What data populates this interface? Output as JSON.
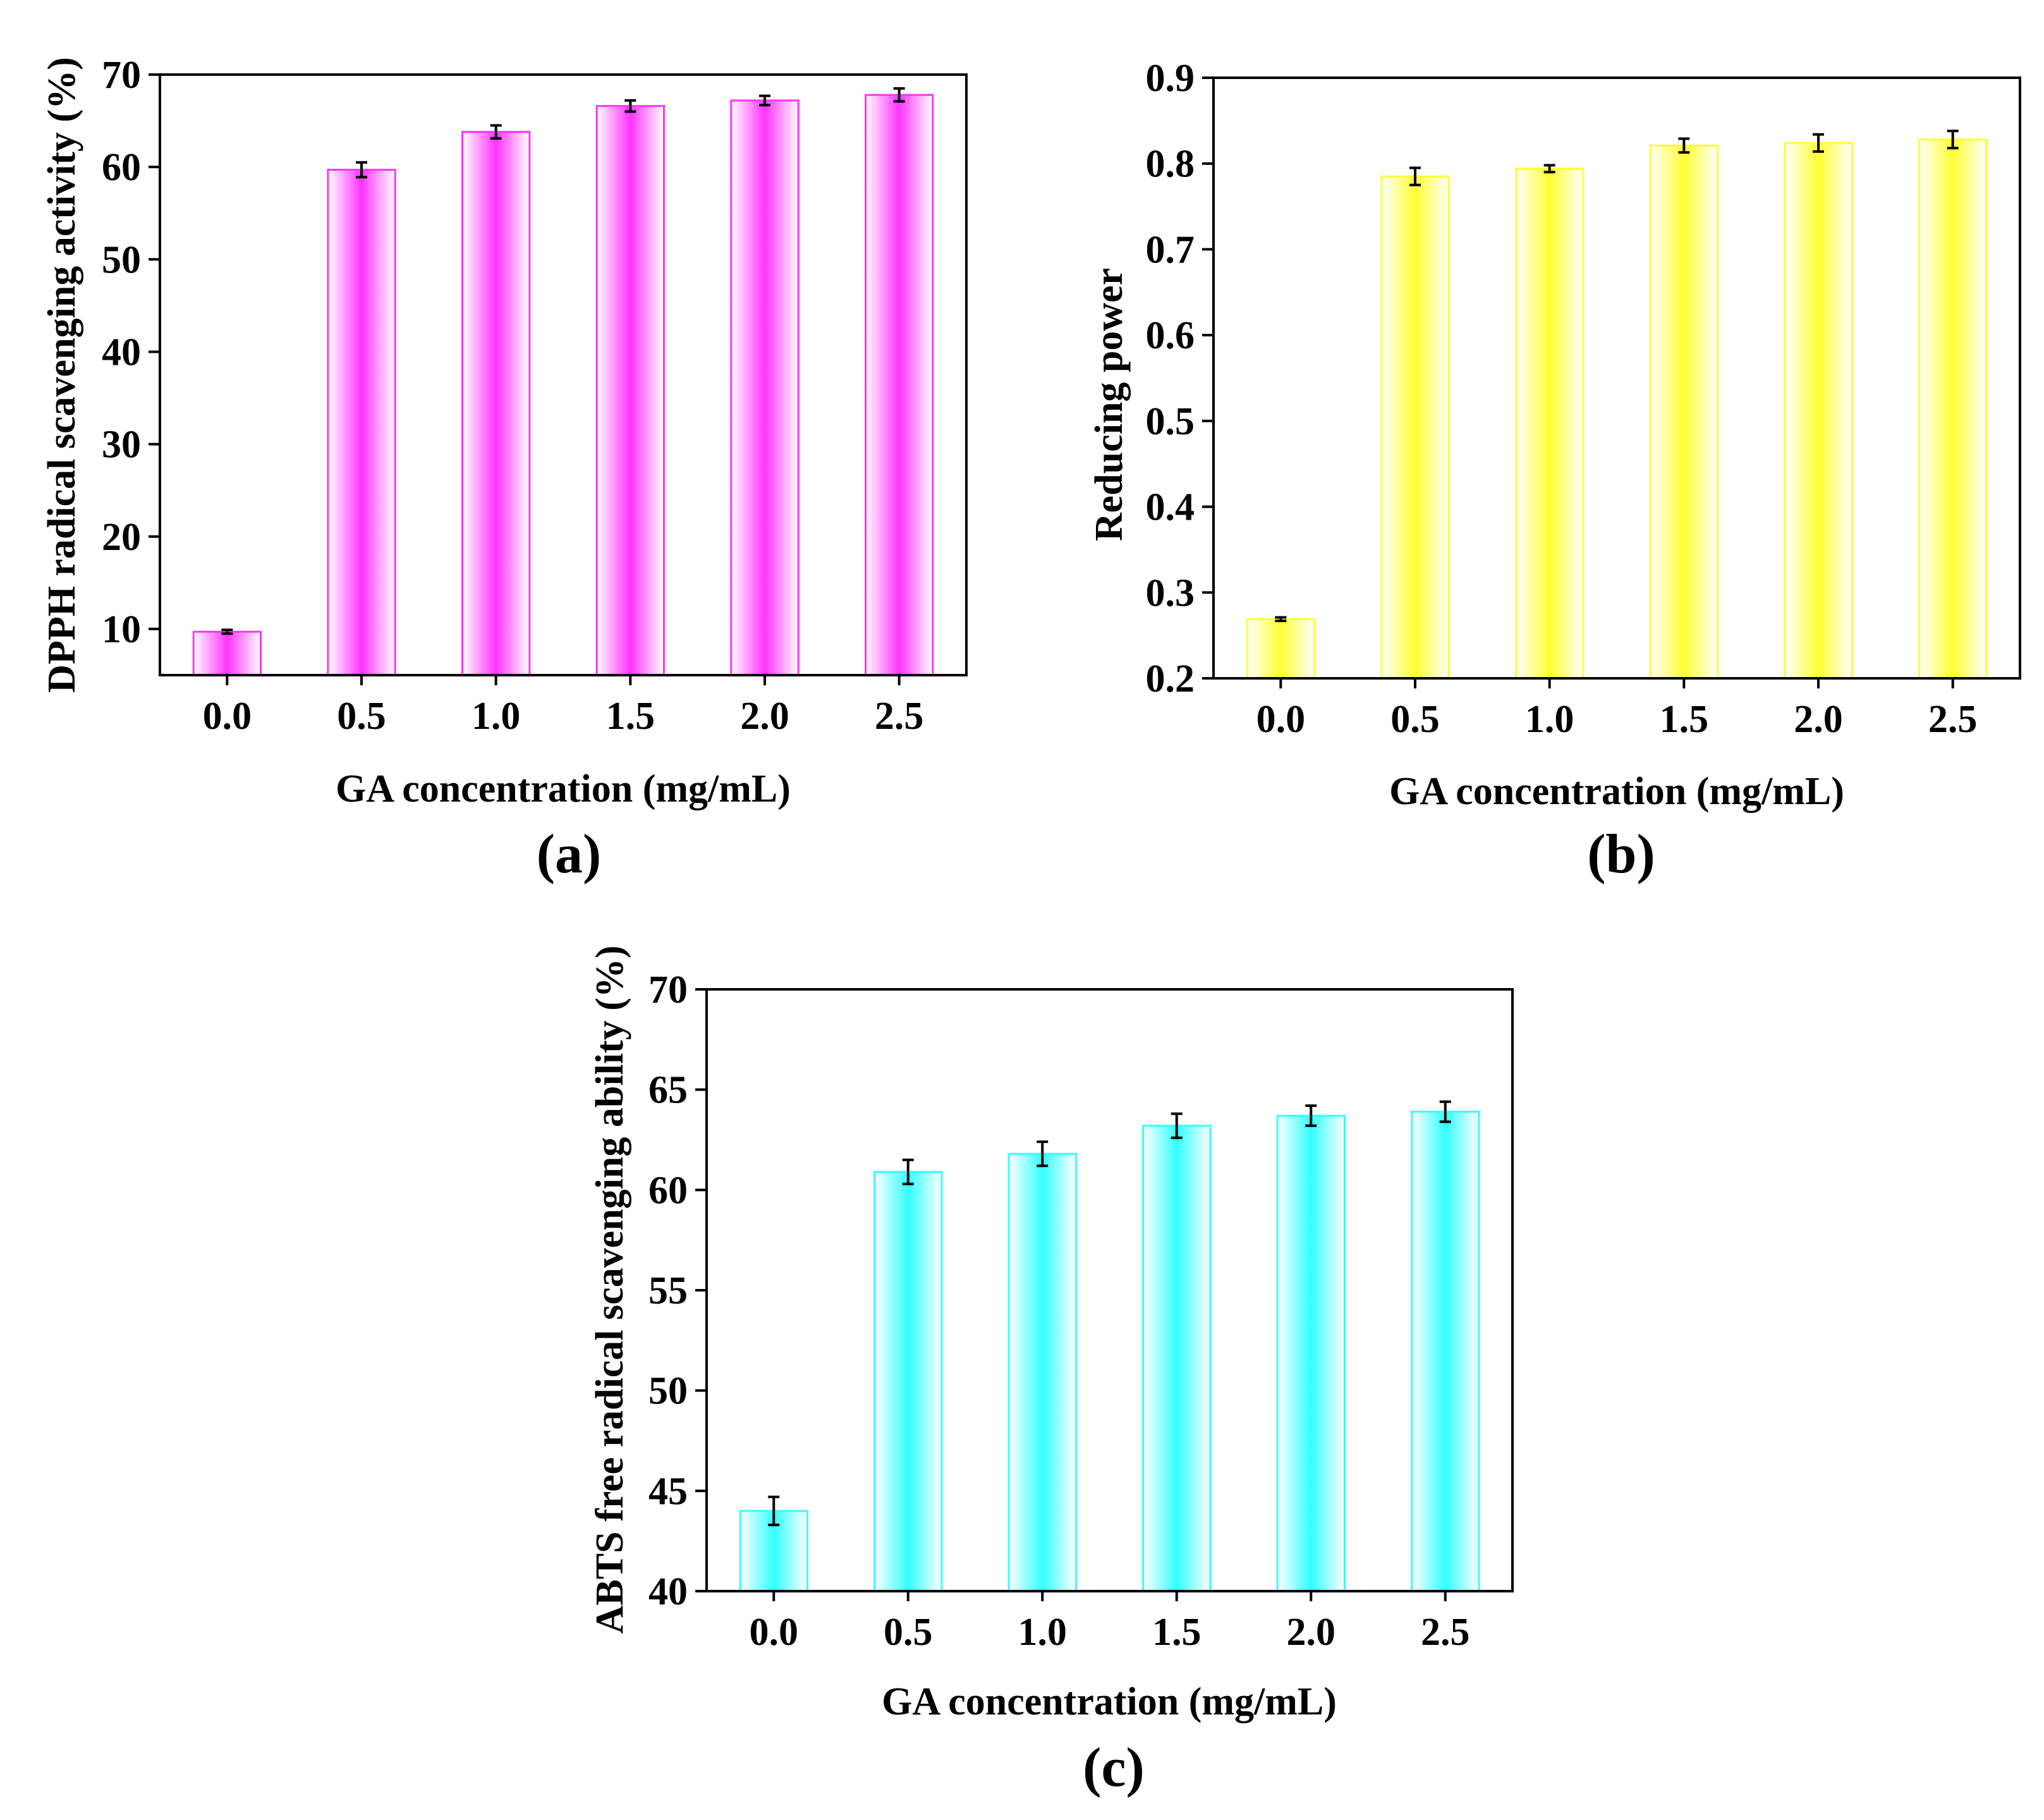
{
  "chart_data": [
    {
      "id": "a",
      "type": "bar",
      "panel_label": "(a)",
      "categories": [
        "0.0",
        "0.5",
        "1.0",
        "1.5",
        "2.0",
        "2.5"
      ],
      "values": [
        9.7,
        59.7,
        63.8,
        66.6,
        67.2,
        67.8
      ],
      "errors": [
        0.2,
        0.8,
        0.7,
        0.6,
        0.5,
        0.7
      ],
      "xlabel": "GA concentration (mg/mL)",
      "ylabel": "DPPH radical scavenging activity (%)",
      "ylim": [
        5,
        70
      ],
      "yticks": [
        "10",
        "20",
        "30",
        "40",
        "50",
        "60",
        "70"
      ],
      "color": "#ff33ff"
    },
    {
      "id": "b",
      "type": "bar",
      "panel_label": "(b)",
      "categories": [
        "0.0",
        "0.5",
        "1.0",
        "1.5",
        "2.0",
        "2.5"
      ],
      "values": [
        0.269,
        0.785,
        0.794,
        0.821,
        0.824,
        0.828
      ],
      "errors": [
        0.002,
        0.01,
        0.004,
        0.008,
        0.01,
        0.01
      ],
      "xlabel": "GA concentration (mg/mL)",
      "ylabel": "Reducing power",
      "ylim": [
        0.2,
        0.9
      ],
      "yticks": [
        "0.2",
        "0.3",
        "0.4",
        "0.5",
        "0.6",
        "0.7",
        "0.8",
        "0.9"
      ],
      "color": "#ffff33"
    },
    {
      "id": "c",
      "type": "bar",
      "panel_label": "(c)",
      "categories": [
        "0.0",
        "0.5",
        "1.0",
        "1.5",
        "2.0",
        "2.5"
      ],
      "values": [
        44.0,
        60.9,
        61.8,
        63.2,
        63.7,
        63.9
      ],
      "errors": [
        0.7,
        0.6,
        0.6,
        0.6,
        0.5,
        0.5
      ],
      "xlabel": "GA concentration (mg/mL)",
      "ylabel": "ABTS free radical scavenging ability (%)",
      "ylim": [
        40,
        70
      ],
      "yticks": [
        "40",
        "45",
        "50",
        "55",
        "60",
        "65",
        "70"
      ],
      "color": "#33ffff"
    }
  ]
}
